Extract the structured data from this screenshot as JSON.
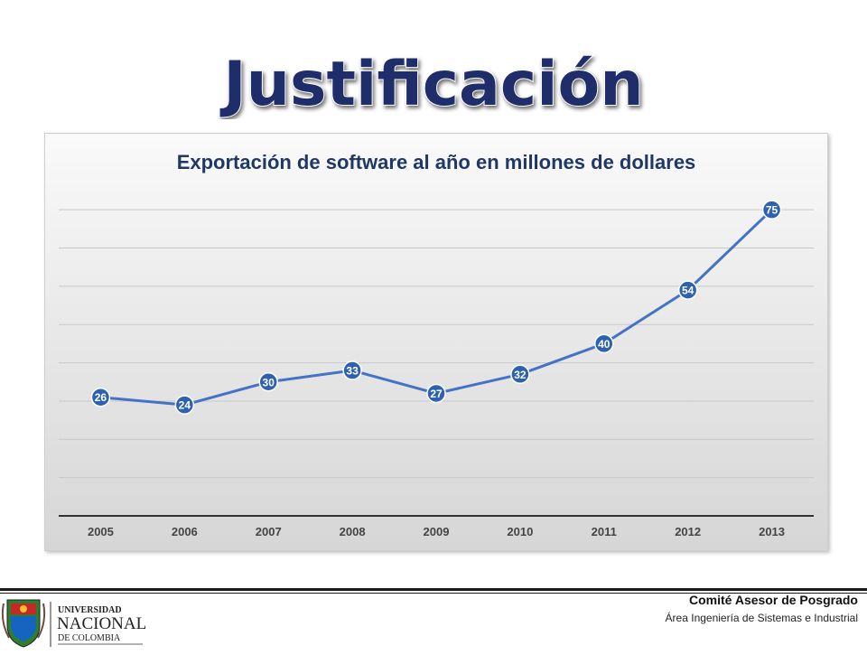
{
  "slide": {
    "title": "Justificación",
    "footer": {
      "committee": "Comité Asesor de Posgrado",
      "area": "Área Ingeniería de Sistemas e Industrial",
      "logo_line1": "UNIVERSIDAD",
      "logo_line2": "NACIONAL",
      "logo_line3": "DE COLOMBIA"
    }
  },
  "colors": {
    "title_fill": "#1f2d6b",
    "chart_title": "#1f3864",
    "series": "#4472c4",
    "marker_fill": "#2e62b0"
  },
  "chart_data": {
    "type": "line",
    "title": "Exportación de software al año en millones de dollares",
    "categories": [
      "2005",
      "2006",
      "2007",
      "2008",
      "2009",
      "2010",
      "2011",
      "2012",
      "2013"
    ],
    "series": [
      {
        "values": [
          26,
          24,
          30,
          33,
          27,
          32,
          40,
          54,
          75
        ]
      }
    ],
    "data_labels": [
      "26",
      "24",
      "30",
      "33",
      "27",
      "32",
      "40",
      "54",
      "75"
    ],
    "xlabel": "",
    "ylabel": "",
    "ylim": [
      -5,
      80
    ],
    "gridlines": true,
    "y_axis_labels_shown": false,
    "legend": "none"
  }
}
